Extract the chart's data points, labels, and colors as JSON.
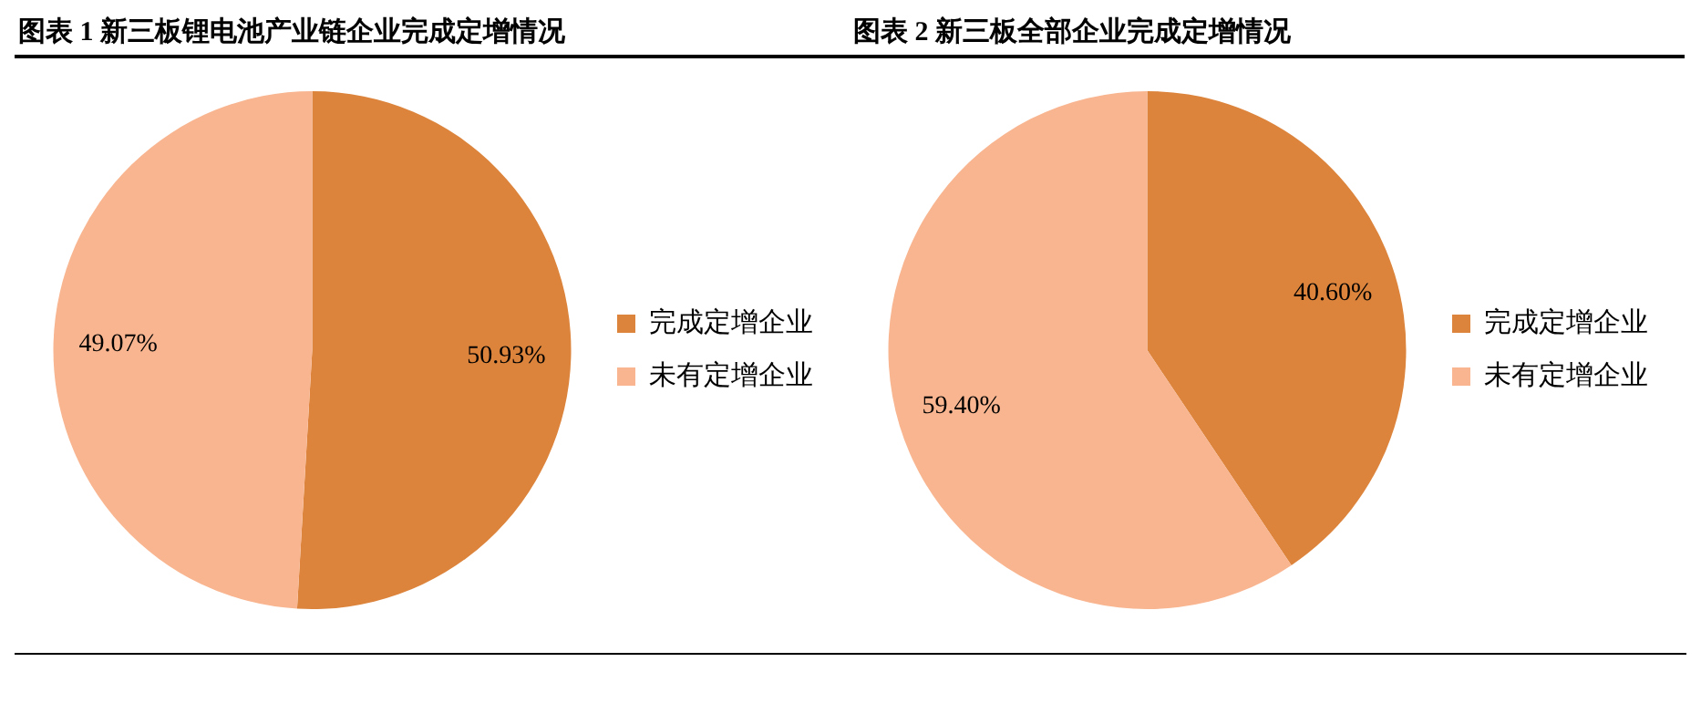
{
  "chart_data": [
    {
      "type": "pie",
      "title": "图表 1 新三板锂电池产业链企业完成定增情况",
      "categories": [
        "完成定增企业",
        "未有定增企业"
      ],
      "values": [
        50.93,
        49.07
      ],
      "colors": [
        "#dc843c",
        "#f8b590"
      ],
      "value_labels": [
        "50.93%",
        "49.07%"
      ],
      "legend": "right"
    },
    {
      "type": "pie",
      "title": "图表 2 新三板全部企业完成定增情况",
      "categories": [
        "完成定增企业",
        "未有定增企业"
      ],
      "values": [
        40.6,
        59.4
      ],
      "colors": [
        "#dc843c",
        "#f8b590"
      ],
      "value_labels": [
        "40.60%",
        "59.40%"
      ],
      "legend": "right"
    }
  ]
}
